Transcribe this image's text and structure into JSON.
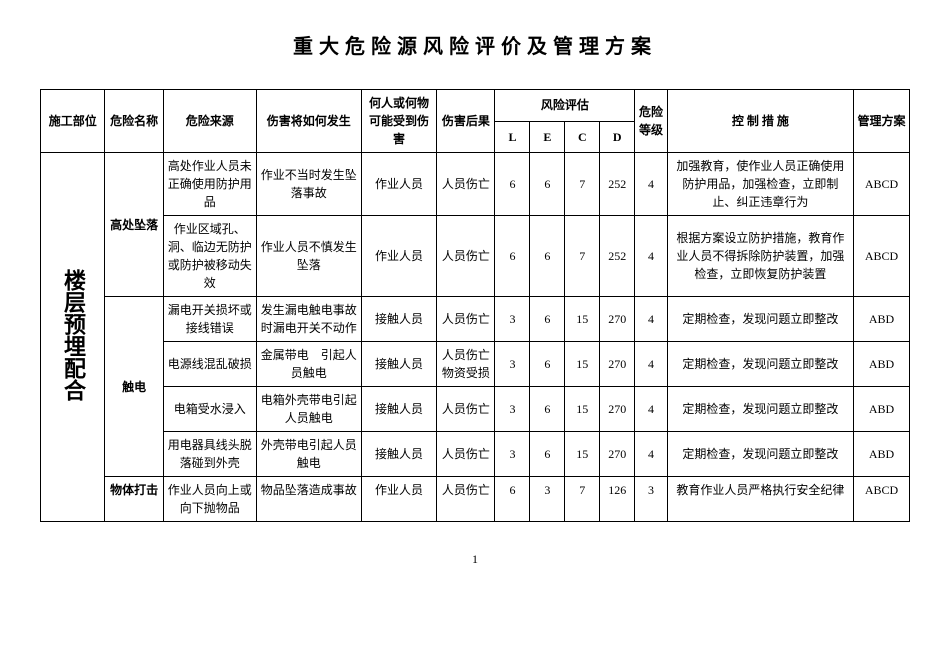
{
  "title": "重大危险源风险评价及管理方案",
  "headers": {
    "site": "施工部位",
    "hazard_name": "危险名称",
    "source": "危险来源",
    "how": "伤害将如何发生",
    "who": "何人或何物可能受到伤害",
    "result": "伤害后果",
    "risk_eval": "风险评估",
    "L": "L",
    "E": "E",
    "C": "C",
    "D": "D",
    "level": "危险等级",
    "measure": "控 制 措 施",
    "plan": "管理方案"
  },
  "site_label": "楼层预埋配合",
  "rows": [
    {
      "hazard_name": "高处坠落",
      "hazard_rowspan": 2,
      "source": "高处作业人员未正确使用防护用品",
      "how": "作业不当时发生坠落事故",
      "who": "作业人员",
      "result": "人员伤亡",
      "L": "6",
      "E": "6",
      "C": "7",
      "D": "252",
      "level": "4",
      "measure": "加强教育，使作业人员正确使用防护用品，加强检查，立即制止、纠正违章行为",
      "plan": "ABCD"
    },
    {
      "source": "作业区域孔、洞、临边无防护或防护被移动失效",
      "how": "作业人员不慎发生坠落",
      "who": "作业人员",
      "result": "人员伤亡",
      "L": "6",
      "E": "6",
      "C": "7",
      "D": "252",
      "level": "4",
      "measure": "根据方案设立防护措施，教育作业人员不得拆除防护装置，加强检查，立即恢复防护装置",
      "plan": "ABCD"
    },
    {
      "hazard_name": "触电",
      "hazard_rowspan": 4,
      "source": "漏电开关损坏或接线错误",
      "how": "发生漏电触电事故时漏电开关不动作",
      "who": "接触人员",
      "result": "人员伤亡",
      "L": "3",
      "E": "6",
      "C": "15",
      "D": "270",
      "level": "4",
      "measure": "定期检查，发现问题立即整改",
      "plan": "ABD"
    },
    {
      "source": "电源线混乱破损",
      "how": "金属带电　引起人员触电",
      "who": "接触人员",
      "result": "人员伤亡物资受损",
      "L": "3",
      "E": "6",
      "C": "15",
      "D": "270",
      "level": "4",
      "measure": "定期检查，发现问题立即整改",
      "plan": "ABD"
    },
    {
      "source": "电箱受水浸入",
      "how": "电箱外壳带电引起人员触电",
      "who": "接触人员",
      "result": "人员伤亡",
      "L": "3",
      "E": "6",
      "C": "15",
      "D": "270",
      "level": "4",
      "measure": "定期检查，发现问题立即整改",
      "plan": "ABD"
    },
    {
      "source": "用电器具线头脱落碰到外壳",
      "how": "外壳带电引起人员触电",
      "who": "接触人员",
      "result": "人员伤亡",
      "L": "3",
      "E": "6",
      "C": "15",
      "D": "270",
      "level": "4",
      "measure": "定期检查，发现问题立即整改",
      "plan": "ABD"
    },
    {
      "hazard_name": "物体打击",
      "hazard_rowspan": 1,
      "source": "作业人员向上或向下抛物品",
      "how": "物品坠落造成事故",
      "who": "作业人员",
      "result": "人员伤亡",
      "L": "6",
      "E": "3",
      "C": "7",
      "D": "126",
      "level": "3",
      "measure": "教育作业人员严格执行安全纪律",
      "plan": "ABCD",
      "valign_top": true
    }
  ],
  "page_number": "1"
}
